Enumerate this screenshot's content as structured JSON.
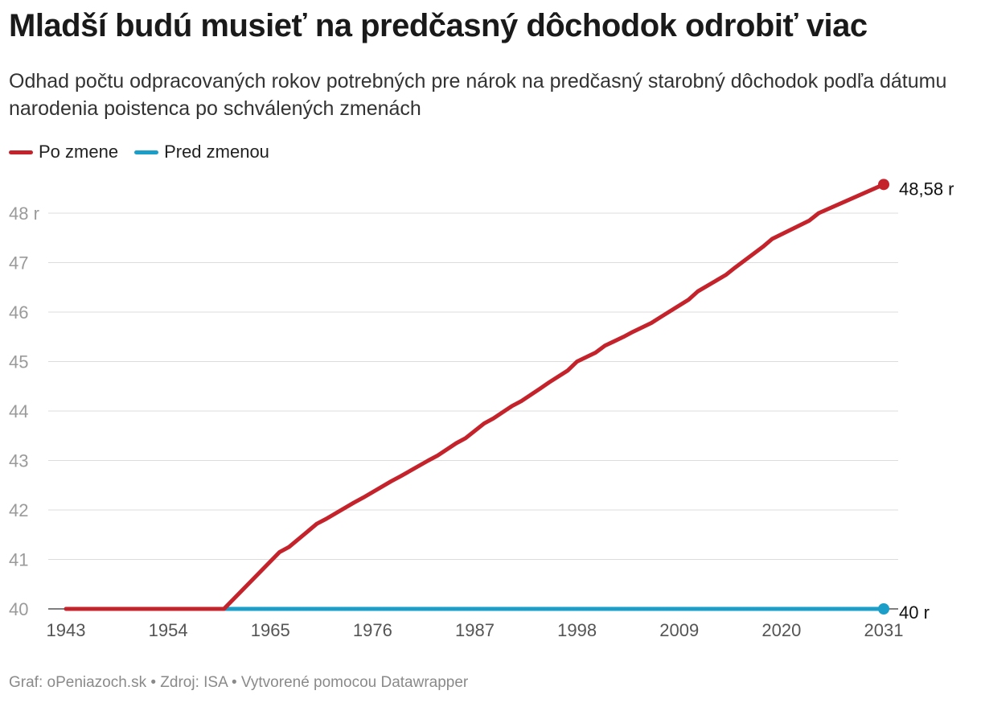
{
  "title": "Mladší budú musieť na predčasný dôchodok odrobiť viac",
  "subtitle": "Odhad počtu odpracovaných rokov potrebných pre nárok na predčasný starobný dôchodok podľa dátumu narodenia poistenca po schválených zmenách",
  "footer": "Graf: oPeniazoch.sk • Zdroj: ISA • Vytvorené pomocou Datawrapper",
  "chart_data": {
    "type": "line",
    "title": "Mladší budú musieť na predčasný dôchodok odrobiť viac",
    "xlim": [
      1943,
      2031
    ],
    "ylim": [
      40,
      48.6
    ],
    "x_ticks": [
      "1943",
      "1954",
      "1965",
      "1976",
      "1987",
      "1998",
      "2009",
      "2020",
      "2031"
    ],
    "y_ticks": [
      {
        "value": 40,
        "label": "40"
      },
      {
        "value": 41,
        "label": "41"
      },
      {
        "value": 42,
        "label": "42"
      },
      {
        "value": 43,
        "label": "43"
      },
      {
        "value": 44,
        "label": "44"
      },
      {
        "value": 45,
        "label": "45"
      },
      {
        "value": 46,
        "label": "46"
      },
      {
        "value": 47,
        "label": "47"
      },
      {
        "value": 48,
        "label": "48 r"
      }
    ],
    "grid": true,
    "legend_position": "top-left",
    "series": [
      {
        "name": "Po zmene",
        "color": "#c4232b",
        "end_label": "48,58 r",
        "x": [
          1943,
          1960,
          1966,
          1967,
          1970,
          1971,
          1974,
          1975,
          1978,
          1979,
          1982,
          1983,
          1985,
          1986,
          1988,
          1989,
          1991,
          1992,
          1994,
          1995,
          1997,
          1998,
          2000,
          2001,
          2003,
          2004,
          2006,
          2007,
          2010,
          2011,
          2014,
          2015,
          2018,
          2019,
          2023,
          2024,
          2031
        ],
        "values": [
          40,
          40,
          41.15,
          41.25,
          41.72,
          41.82,
          42.15,
          42.25,
          42.58,
          42.68,
          43.0,
          43.1,
          43.35,
          43.45,
          43.75,
          43.85,
          44.1,
          44.2,
          44.45,
          44.58,
          44.82,
          45.0,
          45.18,
          45.32,
          45.5,
          45.6,
          45.78,
          45.9,
          46.25,
          46.42,
          46.75,
          46.9,
          47.32,
          47.48,
          47.85,
          48.0,
          48.58
        ]
      },
      {
        "name": "Pred zmenou",
        "color": "#1b9ec8",
        "end_label": "40 r",
        "x": [
          1960,
          2031
        ],
        "values": [
          40,
          40
        ]
      }
    ]
  }
}
